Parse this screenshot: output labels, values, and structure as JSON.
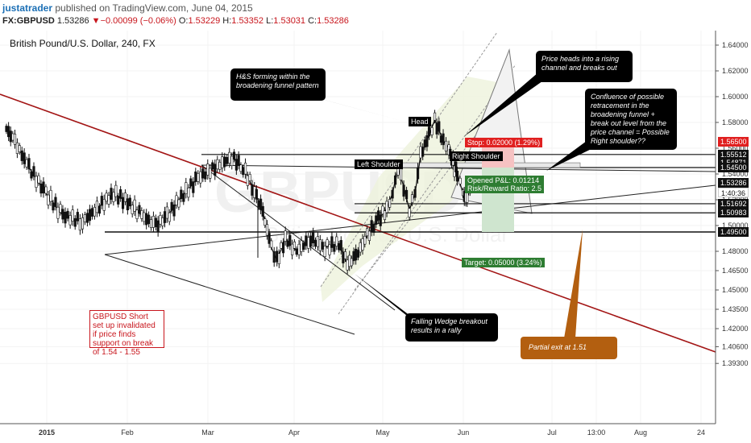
{
  "header": {
    "user": "justatrader",
    "published": "published on TradingView.com, June 04, 2015",
    "symbol": "FX:GBPUSD",
    "last": "1.53286",
    "change": "−0.00099 (−0.06%)",
    "o_label": "O:",
    "o": "1.53229",
    "h_label": "H:",
    "h": "1.53352",
    "l_label": "L:",
    "l": "1.53031",
    "c_label": "C:",
    "c": "1.53286"
  },
  "chart_title": "British Pound/U.S. Dollar, 240, FX",
  "watermark": {
    "big": "GBPUSD",
    "small": "British Pound / U.S. Dollar"
  },
  "annotations": {
    "hs": "H&S forming within the broadening funnel pattern",
    "channel": "Price heads into a rising channel and breaks out",
    "confluence": "Confluence of possible retracement in the broadening funnel + break out level from the price channel = Possible Right shoulder??",
    "wedge": "Falling Wedge breakout results in a rally",
    "note": "GBPUSD Short set up invalidated if price finds support on break of 1.54 - 1.55",
    "partial": "Partial exit at 1.51",
    "head": "Head",
    "left_shoulder": "Left Shoulder",
    "right_shoulder": "Right Shoulder",
    "stop": "Stop: 0.02000 (1.29%)",
    "pnl": "Opened P&L: 0.01214",
    "rr": "Risk/Reward Ratio: 2.5",
    "target": "Target: 0.05000 (3.24%)"
  },
  "colors": {
    "up": "#ffffff",
    "down": "#000000",
    "red_line": "#a31515",
    "stop": "#e02020",
    "target": "#2e7d32",
    "channel": "#e8f0d0",
    "orange": "#b35f10"
  },
  "price_labels": [
    {
      "value": 1.565,
      "text": "1.56500",
      "style": "red"
    },
    {
      "value": 1.55512,
      "text": "1.55512",
      "style": "dark"
    },
    {
      "value": 1.54871,
      "text": "1.54871",
      "style": "dark"
    },
    {
      "value": 1.545,
      "text": "1.54500",
      "style": "dark"
    },
    {
      "value": 1.53286,
      "text": "1.53286",
      "style": "dark"
    },
    {
      "value": 1.5258,
      "text": "1:40:36",
      "style": "light"
    },
    {
      "value": 1.51692,
      "text": "1.51692",
      "style": "dark"
    },
    {
      "value": 1.50983,
      "text": "1.50983",
      "style": "dark"
    },
    {
      "value": 1.495,
      "text": "1.49500",
      "style": "dark"
    }
  ],
  "chart_data": {
    "type": "candlestick",
    "title": "British Pound/U.S. Dollar, 240, FX",
    "y_range": [
      1.386,
      1.65
    ],
    "y_ticks": [
      "1.64000",
      "1.62000",
      "1.60000",
      "1.58000",
      "1.56000",
      "1.54000",
      "1.52000",
      "1.50000",
      "1.48000",
      "1.46500",
      "1.45000",
      "1.43500",
      "1.42000",
      "1.40600",
      "1.39300"
    ],
    "y_tick_values": [
      1.64,
      1.62,
      1.6,
      1.58,
      1.56,
      1.54,
      1.52,
      1.5,
      1.48,
      1.465,
      1.45,
      1.435,
      1.42,
      1.406,
      1.393
    ],
    "x_labels": [
      "2015",
      "Feb",
      "Mar",
      "Apr",
      "May",
      "Jun",
      "Jul",
      "13:00",
      "Aug",
      "24"
    ],
    "series_path": [
      [
        1.575,
        0
      ],
      [
        1.565,
        3
      ],
      [
        1.545,
        8
      ],
      [
        1.525,
        14
      ],
      [
        1.508,
        20
      ],
      [
        1.503,
        27
      ],
      [
        1.515,
        33
      ],
      [
        1.525,
        38
      ],
      [
        1.518,
        43
      ],
      [
        1.508,
        48
      ],
      [
        1.5,
        53
      ],
      [
        1.507,
        57
      ],
      [
        1.522,
        62
      ],
      [
        1.537,
        68
      ],
      [
        1.545,
        74
      ],
      [
        1.553,
        80
      ],
      [
        1.545,
        84
      ],
      [
        1.527,
        88
      ],
      [
        1.51,
        91
      ],
      [
        1.483,
        94
      ],
      [
        1.473,
        96
      ],
      [
        1.49,
        99
      ],
      [
        1.48,
        103
      ],
      [
        1.49,
        108
      ],
      [
        1.483,
        113
      ],
      [
        1.486,
        118
      ],
      [
        1.47,
        121
      ],
      [
        1.476,
        124
      ],
      [
        1.492,
        128
      ],
      [
        1.505,
        132
      ],
      [
        1.513,
        135
      ],
      [
        1.525,
        137
      ],
      [
        1.545,
        139
      ],
      [
        1.53,
        141
      ],
      [
        1.512,
        143
      ],
      [
        1.525,
        145
      ],
      [
        1.555,
        147
      ],
      [
        1.57,
        150
      ],
      [
        1.582,
        152
      ],
      [
        1.566,
        155
      ],
      [
        1.56,
        157
      ],
      [
        1.552,
        158
      ],
      [
        1.545,
        159
      ],
      [
        1.54,
        160
      ],
      [
        1.525,
        162
      ],
      [
        1.52,
        163
      ],
      [
        1.528,
        164
      ],
      [
        1.533,
        165
      ]
    ]
  }
}
